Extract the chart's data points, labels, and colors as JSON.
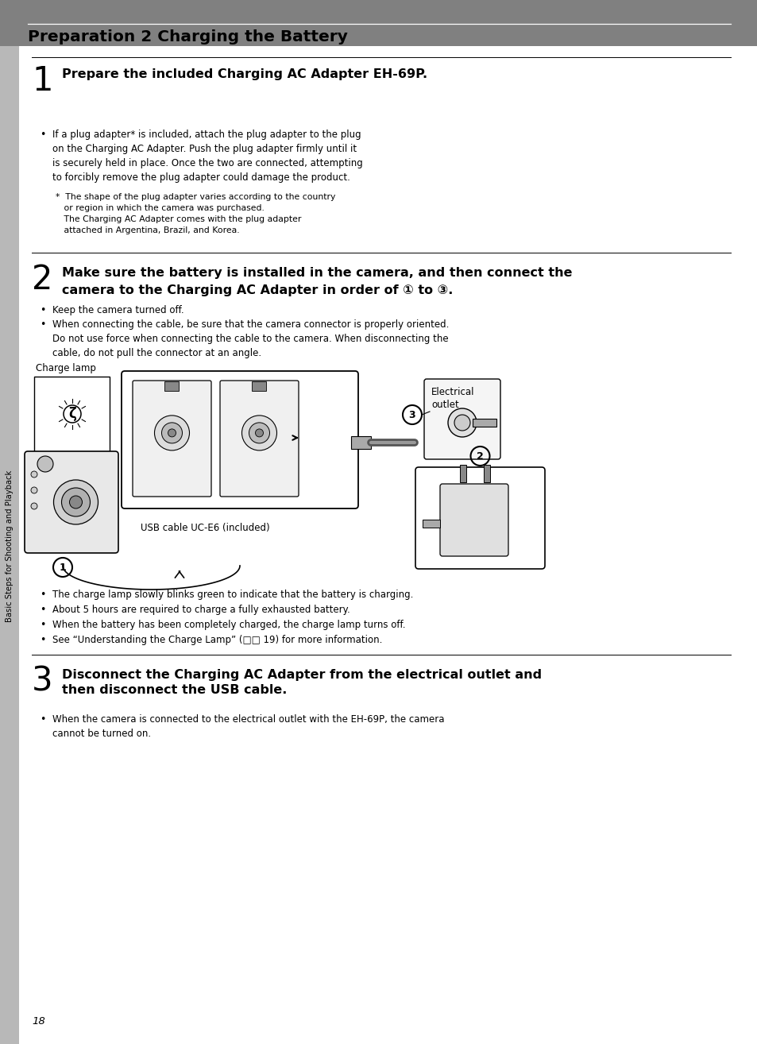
{
  "page_bg": "#ffffff",
  "header_bg": "#808080",
  "header_text": "Preparation 2 Charging the Battery",
  "sidebar_bg": "#b8b8b8",
  "sidebar_text": "Basic Steps for Shooting and Playback",
  "page_number": "18",
  "step1_number": "1",
  "step1_title": "Prepare the included Charging AC Adapter EH-69P.",
  "step1_bullet1": "If a plug adapter* is included, attach the plug adapter to the plug\non the Charging AC Adapter. Push the plug adapter firmly until it\nis securely held in place. Once the two are connected, attempting\nto forcibly remove the plug adapter could damage the product.",
  "step1_note": "*  The shape of the plug adapter varies according to the country\n   or region in which the camera was purchased.\n   The Charging AC Adapter comes with the plug adapter\n   attached in Argentina, Brazil, and Korea.",
  "step2_number": "2",
  "step2_title_line1": "Make sure the battery is installed in the camera, and then connect the",
  "step2_title_line2": "camera to the Charging AC Adapter in order of ① to ③.",
  "step2_bullet1": "Keep the camera turned off.",
  "step2_bullet2": "When connecting the cable, be sure that the camera connector is properly oriented.\nDo not use force when connecting the cable to the camera. When disconnecting the\ncable, do not pull the connector at an angle.",
  "charge_lamp_label": "Charge lamp",
  "usb_cable_label": "USB cable UC-E6 (included)",
  "electrical_outlet_label": "Electrical\noutlet",
  "step2_bullet3": "The charge lamp slowly blinks green to indicate that the battery is charging.",
  "step2_bullet4": "About 5 hours are required to charge a fully exhausted battery.",
  "step2_bullet5": "When the battery has been completely charged, the charge lamp turns off.",
  "step2_bullet6": "See “Understanding the Charge Lamp” (□□ 19) for more information.",
  "step3_number": "3",
  "step3_title": "Disconnect the Charging AC Adapter from the electrical outlet and\nthen disconnect the USB cable.",
  "step3_bullet1": "When the camera is connected to the electrical outlet with the EH-69P, the camera\ncannot be turned on.",
  "body_font_size": 8.5,
  "note_font_size": 7.8,
  "title_font_size": 11.5,
  "header_font_size": 14.5,
  "step_num_size": 30
}
